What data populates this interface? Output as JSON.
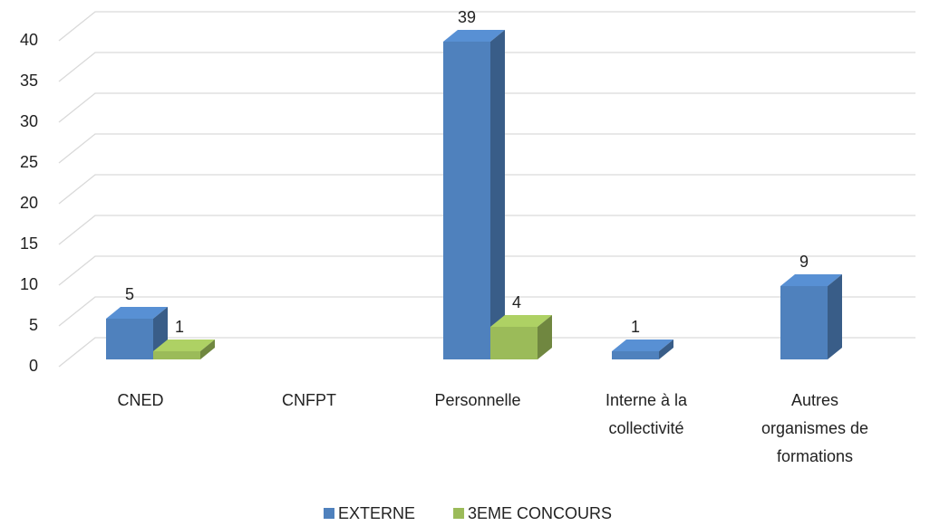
{
  "chart_data": {
    "type": "bar3d",
    "categories": [
      "CNED",
      "CNFPT",
      "Personnelle",
      "Interne à la collectivité",
      "Autres organismes de formations"
    ],
    "series": [
      {
        "name": "EXTERNE",
        "color": "#4f81bd",
        "values": [
          5,
          null,
          39,
          1,
          9
        ]
      },
      {
        "name": "3EME CONCOURS",
        "color": "#9bbb59",
        "values": [
          1,
          null,
          4,
          null,
          null
        ]
      }
    ],
    "ylim": [
      0,
      40
    ],
    "yticks": [
      0,
      5,
      10,
      15,
      20,
      25,
      30,
      35,
      40
    ],
    "grid": true,
    "legend": "bottom"
  }
}
